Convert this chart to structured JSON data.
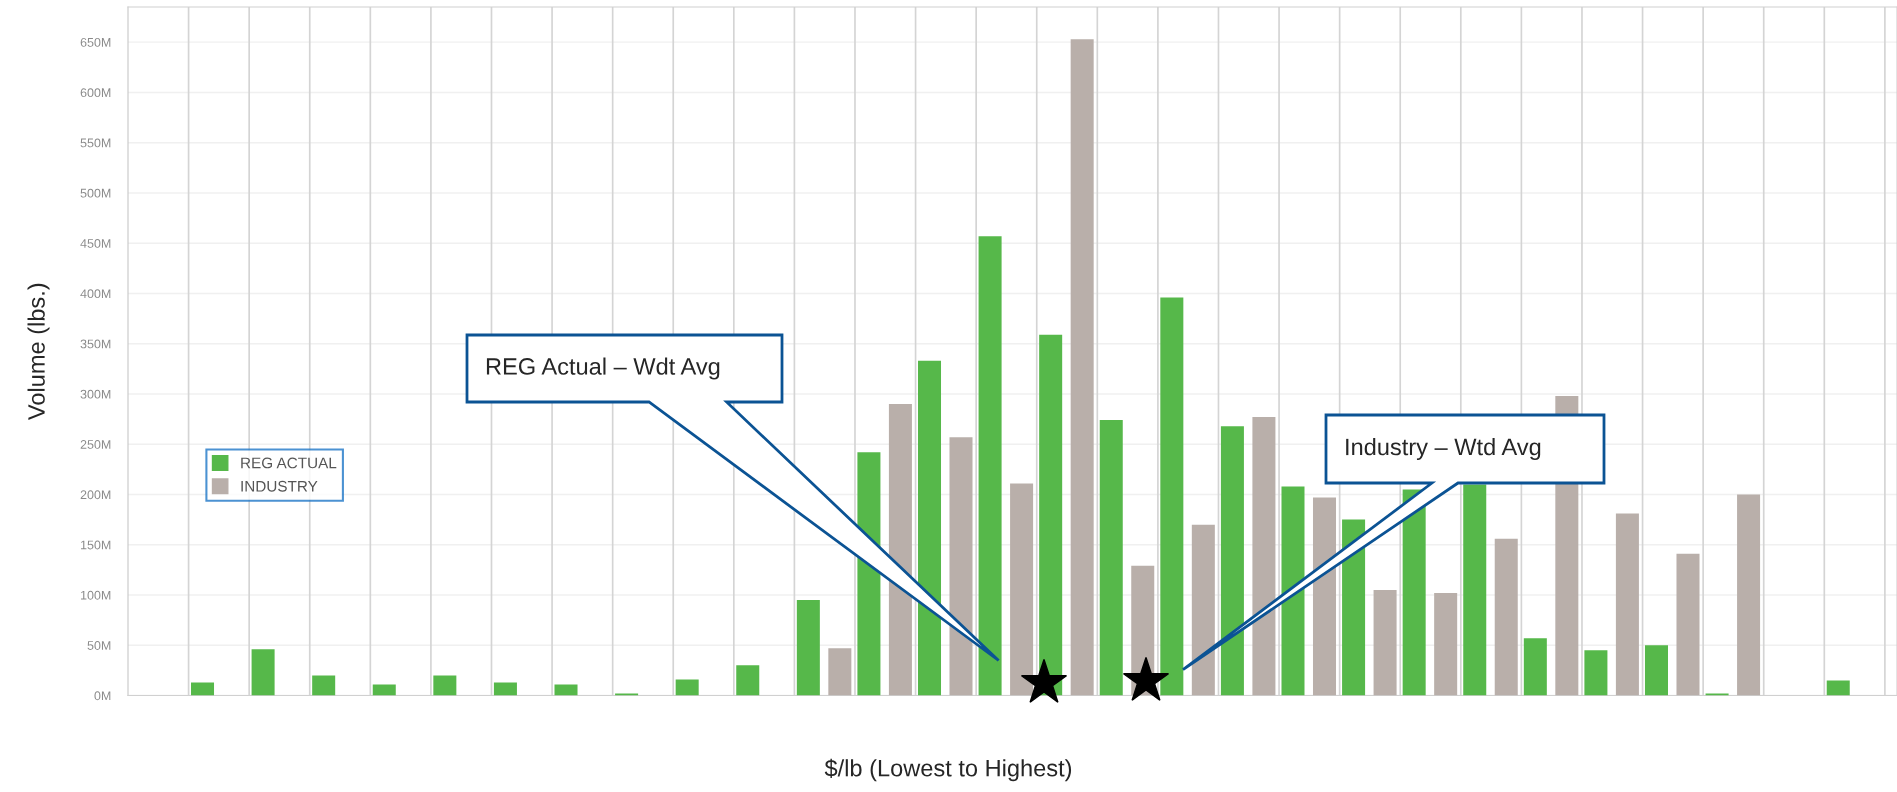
{
  "chart_data": {
    "type": "bar",
    "xlabel": "$/lb (Lowest to Highest)",
    "ylabel": "Volume (lbs.)",
    "categories": [
      null,
      null,
      null,
      null,
      null,
      null,
      null,
      null,
      null,
      null,
      null,
      null,
      null,
      null,
      null,
      null,
      null,
      null,
      null,
      null,
      null,
      null,
      null,
      null,
      null,
      null,
      null,
      null,
      null
    ],
    "series": [
      {
        "name": "REG ACTUAL",
        "color": "#56b84a",
        "values": [
          null,
          13,
          46,
          20,
          11,
          20,
          13,
          11,
          2,
          16,
          30,
          95,
          242,
          333,
          457,
          359,
          274,
          396,
          268,
          208,
          175,
          205,
          210,
          57,
          45,
          50,
          2,
          null,
          15
        ]
      },
      {
        "name": "INDUSTRY",
        "color": "#b9afaa",
        "values": [
          null,
          null,
          null,
          null,
          null,
          null,
          null,
          null,
          null,
          null,
          null,
          47,
          290,
          257,
          211,
          653,
          129,
          170,
          277,
          197,
          105,
          102,
          156,
          298,
          181,
          141,
          200,
          null,
          null
        ]
      }
    ],
    "ylim": [
      0,
      685
    ],
    "yticks": [
      {
        "value": 0,
        "label": "0M"
      },
      {
        "value": 50,
        "label": "50M"
      },
      {
        "value": 100,
        "label": "100M"
      },
      {
        "value": 150,
        "label": "150M"
      },
      {
        "value": 200,
        "label": "200M"
      },
      {
        "value": 250,
        "label": "250M"
      },
      {
        "value": 300,
        "label": "300M"
      },
      {
        "value": 350,
        "label": "350M"
      },
      {
        "value": 400,
        "label": "400M"
      },
      {
        "value": 450,
        "label": "450M"
      },
      {
        "value": 500,
        "label": "500M"
      },
      {
        "value": 550,
        "label": "550M"
      },
      {
        "value": 600,
        "label": "600M"
      },
      {
        "value": 650,
        "label": "650M"
      }
    ],
    "tick_labels": "y",
    "grid": true,
    "legend": "left",
    "annotations": [
      "REG Actual – Wdt Avg",
      "Industry – Wtd Avg"
    ]
  }
}
